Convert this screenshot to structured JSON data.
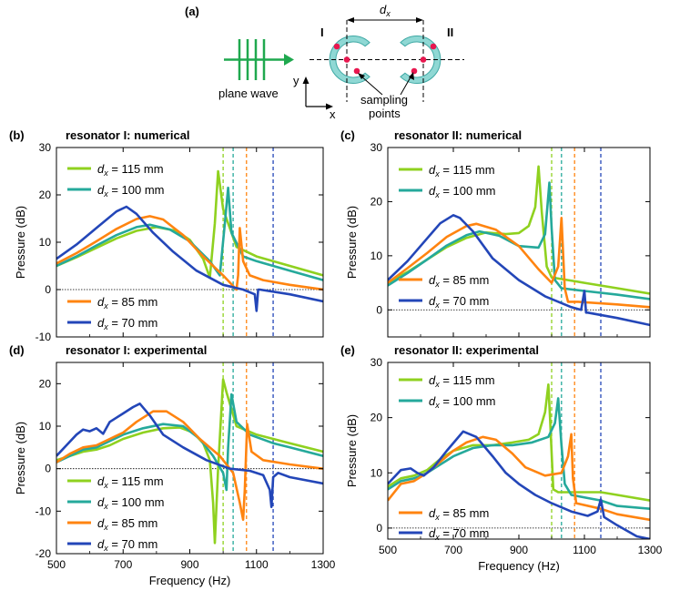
{
  "colors": {
    "c115": "#8fd11f",
    "c100": "#25a99b",
    "c85": "#ff8410",
    "c70": "#2346b8",
    "ring": "#8fd8d4",
    "ringStroke": "#3ea8a4",
    "dot": "#e8174f",
    "wave": "#1fa84e"
  },
  "schematic": {
    "label": "(a)",
    "dx": "d",
    "dx_sub": "x",
    "res1": "I",
    "res2": "II",
    "wave_label": "plane wave",
    "axis_y": "y",
    "axis_x": "x",
    "sampling_line1": "sampling",
    "sampling_line2": "points"
  },
  "chart_data": [
    {
      "id": "b",
      "panel": "(b)",
      "type": "line",
      "title": "resonator I: numerical",
      "xlabel": "Frequency (Hz)",
      "ylabel": "Pressure (dB)",
      "xlim": [
        500,
        1300
      ],
      "ylim": [
        -10,
        30
      ],
      "xticks": [
        500,
        700,
        900,
        1100,
        1300
      ],
      "yticks": [
        -10,
        0,
        10,
        20,
        30
      ],
      "show_xticklabels": false,
      "vlines": [
        1000,
        1030,
        1070,
        1150
      ],
      "series": [
        {
          "key": "c115",
          "name": "= 115 mm",
          "x": [
            500,
            560,
            620,
            680,
            740,
            800,
            860,
            900,
            940,
            960,
            975,
            985,
            1000,
            1040,
            1100,
            1200,
            1300
          ],
          "y": [
            5,
            6.8,
            8.8,
            10.8,
            12.4,
            13.2,
            12.4,
            10.5,
            6.5,
            2.5,
            14,
            25,
            17,
            9,
            7,
            5,
            3
          ]
        },
        {
          "key": "c100",
          "name": "= 100 mm",
          "x": [
            500,
            560,
            620,
            680,
            740,
            780,
            840,
            900,
            960,
            990,
            1005,
            1015,
            1025,
            1060,
            1100,
            1200,
            1300
          ],
          "y": [
            5,
            7,
            9.3,
            11.5,
            13.2,
            13.7,
            12.7,
            10.2,
            6,
            3,
            14,
            21.5,
            12,
            7,
            6,
            4,
            2
          ]
        },
        {
          "key": "c85",
          "name": "= 85 mm",
          "x": [
            500,
            560,
            620,
            680,
            740,
            780,
            820,
            880,
            940,
            1000,
            1040,
            1045,
            1050,
            1060,
            1080,
            1120,
            1200,
            1300
          ],
          "y": [
            5.5,
            7.7,
            10.2,
            12.8,
            14.9,
            15.5,
            14.8,
            11.5,
            7,
            3,
            0,
            3,
            13,
            6,
            3,
            2,
            1,
            0
          ]
        },
        {
          "key": "c70",
          "name": "= 70 mm",
          "x": [
            500,
            560,
            620,
            680,
            710,
            740,
            790,
            850,
            920,
            1000,
            1060,
            1095,
            1100,
            1105,
            1110,
            1200,
            1300
          ],
          "y": [
            6.5,
            9.5,
            13,
            16.5,
            17.5,
            16,
            12,
            8,
            4,
            1,
            0,
            -1,
            -4.5,
            0,
            0,
            -1,
            -2.5
          ]
        }
      ],
      "legend_top": [
        0,
        1
      ],
      "legend_bottom": [
        2,
        3
      ]
    },
    {
      "id": "c",
      "panel": "(c)",
      "type": "line",
      "title": "resonator II: numerical",
      "xlabel": "Frequency (Hz)",
      "ylabel": "Pressure (dB)",
      "xlim": [
        500,
        1300
      ],
      "ylim": [
        -5,
        30
      ],
      "xticks": [
        500,
        700,
        900,
        1100,
        1300
      ],
      "yticks": [
        0,
        10,
        20,
        30
      ],
      "show_xticklabels": false,
      "vlines": [
        1000,
        1030,
        1070,
        1150
      ],
      "series": [
        {
          "key": "c115",
          "name": "= 115 mm",
          "x": [
            500,
            560,
            620,
            680,
            740,
            800,
            860,
            900,
            930,
            950,
            960,
            970,
            985,
            1000,
            1050,
            1100,
            1200,
            1300
          ],
          "y": [
            5,
            7,
            9.3,
            11.6,
            13.3,
            14.3,
            14,
            14.2,
            15.5,
            19,
            26.5,
            18,
            8,
            6,
            5.5,
            5,
            4,
            3
          ]
        },
        {
          "key": "c100",
          "name": "= 100 mm",
          "x": [
            500,
            560,
            620,
            680,
            740,
            780,
            840,
            900,
            960,
            980,
            993,
            1000,
            1010,
            1030,
            1100,
            1200,
            1300
          ],
          "y": [
            4.5,
            6.8,
            9.3,
            11.9,
            13.8,
            14.5,
            13.7,
            11.8,
            11.5,
            14,
            23.5,
            15,
            5.5,
            4,
            3.5,
            2.8,
            2
          ]
        },
        {
          "key": "c85",
          "name": "= 85 mm",
          "x": [
            500,
            560,
            620,
            680,
            740,
            770,
            830,
            900,
            960,
            1000,
            1020,
            1030,
            1040,
            1050,
            1080,
            1200,
            1300
          ],
          "y": [
            5,
            7.7,
            10.5,
            13.5,
            15.5,
            15.9,
            14.8,
            11.8,
            7.5,
            5,
            8,
            17,
            4,
            1.5,
            1.5,
            1,
            0.5
          ]
        },
        {
          "key": "c70",
          "name": "= 70 mm",
          "x": [
            500,
            560,
            620,
            660,
            700,
            720,
            760,
            820,
            900,
            980,
            1060,
            1090,
            1100,
            1105,
            1110,
            1200,
            1300
          ],
          "y": [
            5.5,
            9,
            13.2,
            16,
            17.5,
            17,
            14.5,
            9.5,
            5.5,
            2.5,
            0.5,
            0,
            3.5,
            -0.5,
            -0.5,
            -1.5,
            -2.8
          ]
        }
      ],
      "legend_top": [
        0,
        1
      ],
      "legend_bottom": [
        2,
        3
      ]
    },
    {
      "id": "d",
      "panel": "(d)",
      "type": "line",
      "title": "resonator I: experimental",
      "xlabel": "Frequency (Hz)",
      "ylabel": "Pressure (dB)",
      "xlim": [
        500,
        1300
      ],
      "ylim": [
        -20,
        25
      ],
      "xticks": [
        500,
        700,
        900,
        1100,
        1300
      ],
      "yticks": [
        -20,
        -10,
        0,
        10,
        20
      ],
      "show_xticklabels": true,
      "vlines": [
        1000,
        1030,
        1070,
        1150
      ],
      "series": [
        {
          "key": "c115",
          "name": "= 115 mm",
          "x": [
            500,
            540,
            580,
            620,
            660,
            700,
            760,
            820,
            870,
            910,
            940,
            960,
            970,
            975,
            985,
            1000,
            1010,
            1040,
            1100,
            1200,
            1300
          ],
          "y": [
            2,
            3,
            4,
            4.5,
            5.5,
            7,
            8.5,
            9.5,
            9.7,
            8.5,
            6,
            2,
            -8,
            -17.5,
            0,
            21,
            18,
            10,
            8,
            6,
            4
          ]
        },
        {
          "key": "c100",
          "name": "= 100 mm",
          "x": [
            500,
            540,
            580,
            620,
            660,
            700,
            760,
            820,
            880,
            930,
            970,
            1000,
            1010,
            1015,
            1025,
            1040,
            1080,
            1150,
            1200,
            1300
          ],
          "y": [
            1.5,
            3,
            4.5,
            5,
            6.5,
            8,
            9.5,
            10.5,
            10,
            7,
            3,
            -1,
            -5,
            5,
            17.5,
            11,
            8,
            6,
            5,
            3
          ]
        },
        {
          "key": "c85",
          "name": "= 85 mm",
          "x": [
            500,
            540,
            580,
            620,
            660,
            700,
            740,
            790,
            830,
            880,
            930,
            990,
            1030,
            1050,
            1060,
            1065,
            1072,
            1085,
            1120,
            1200,
            1300
          ],
          "y": [
            1.5,
            3.5,
            5,
            5.5,
            7,
            8.5,
            11,
            13.5,
            13.5,
            11,
            7,
            3,
            -1,
            -8,
            -12,
            -5,
            10.5,
            4,
            2,
            1,
            0
          ]
        },
        {
          "key": "c70",
          "name": "= 70 mm",
          "x": [
            500,
            530,
            560,
            580,
            600,
            620,
            640,
            660,
            700,
            730,
            750,
            780,
            820,
            880,
            950,
            1020,
            1080,
            1120,
            1140,
            1145,
            1150,
            1165,
            1200,
            1300
          ],
          "y": [
            3,
            5.5,
            8,
            9.2,
            8.8,
            9.5,
            8.2,
            11,
            13,
            14.5,
            15.3,
            12.5,
            8,
            5,
            2,
            0,
            -0.5,
            -1.5,
            -5,
            -9,
            -2,
            -1,
            -2,
            -3.5
          ]
        }
      ],
      "legend_top": [],
      "legend_bottom": [
        0,
        1,
        2,
        3
      ]
    },
    {
      "id": "e",
      "panel": "(e)",
      "type": "line",
      "title": "resonator II: experimental",
      "xlabel": "Frequency (Hz)",
      "ylabel": "Pressure (dB)",
      "xlim": [
        500,
        1300
      ],
      "ylim": [
        -2,
        30
      ],
      "xticks": [
        500,
        700,
        900,
        1100,
        1300
      ],
      "yticks": [
        0,
        10,
        20,
        30
      ],
      "show_xticklabels": true,
      "vlines": [
        1000,
        1030,
        1070,
        1150
      ],
      "series": [
        {
          "key": "c115",
          "name": "= 115 mm",
          "x": [
            500,
            540,
            580,
            620,
            660,
            700,
            760,
            820,
            880,
            930,
            960,
            980,
            990,
            995,
            1005,
            1020,
            1060,
            1150,
            1200,
            1300
          ],
          "y": [
            7.5,
            9,
            9.5,
            10.5,
            12.5,
            14,
            15,
            15,
            15.5,
            16,
            17,
            21,
            26,
            20,
            7,
            6.5,
            6.5,
            6.5,
            6,
            5
          ]
        },
        {
          "key": "c100",
          "name": "= 100 mm",
          "x": [
            500,
            540,
            580,
            620,
            660,
            700,
            760,
            820,
            880,
            940,
            990,
            1010,
            1020,
            1030,
            1040,
            1060,
            1150,
            1200,
            1300
          ],
          "y": [
            7,
            8.5,
            9,
            10,
            11.5,
            13,
            14.5,
            15,
            15,
            15.5,
            16.5,
            19,
            23.5,
            15,
            8,
            6,
            5,
            4,
            3.5
          ]
        },
        {
          "key": "c85",
          "name": "= 85 mm",
          "x": [
            500,
            540,
            580,
            620,
            660,
            700,
            740,
            790,
            830,
            880,
            920,
            980,
            1030,
            1050,
            1060,
            1065,
            1075,
            1150,
            1200,
            1300
          ],
          "y": [
            5,
            8,
            8.5,
            10,
            12,
            14,
            15.5,
            16.5,
            16,
            13.5,
            11,
            9.5,
            10,
            13,
            17,
            9,
            4.5,
            3.5,
            2.5,
            1.5
          ]
        },
        {
          "key": "c70",
          "name": "= 70 mm",
          "x": [
            500,
            540,
            570,
            590,
            610,
            640,
            680,
            730,
            770,
            820,
            860,
            900,
            950,
            1000,
            1060,
            1110,
            1140,
            1150,
            1160,
            1200,
            1260,
            1300
          ],
          "y": [
            8,
            10.5,
            10.8,
            10,
            9.5,
            11,
            14,
            17.5,
            16.5,
            13,
            10,
            8,
            6,
            4.5,
            3,
            2.2,
            3,
            5.2,
            2,
            0.5,
            -1.5,
            -2
          ]
        }
      ],
      "legend_top": [
        0,
        1
      ],
      "legend_bottom": [
        2,
        3
      ]
    }
  ]
}
